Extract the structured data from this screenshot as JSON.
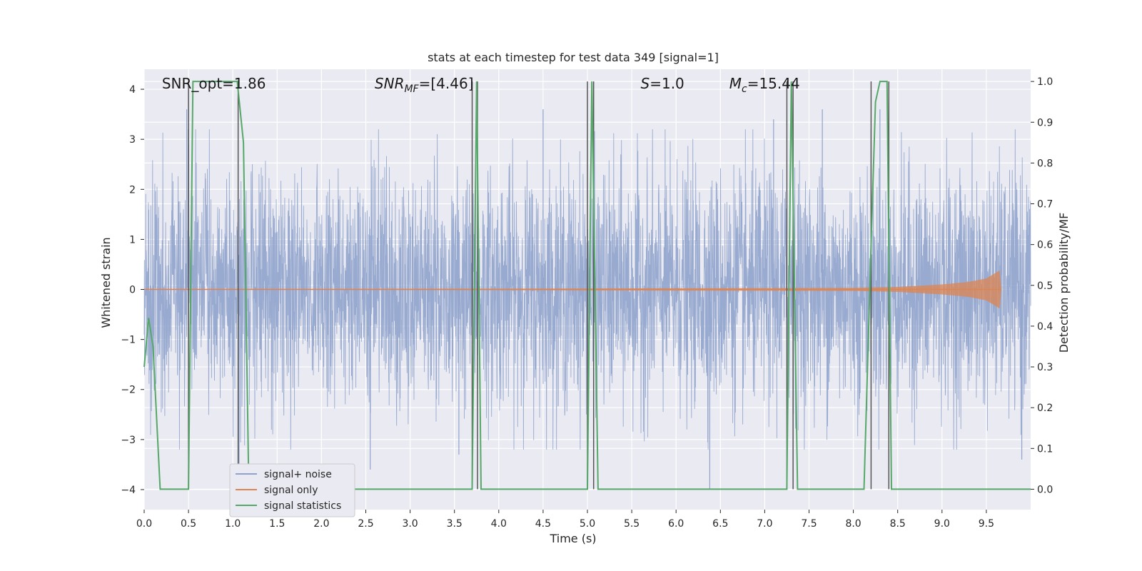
{
  "chart_data": {
    "type": "line",
    "title": "stats at each timestep for test data 349 [signal=1]",
    "xlabel": "Time (s)",
    "ylabel_left": "Whitened strain",
    "ylabel_right": "Detection probability/MF",
    "xlim": [
      0.0,
      10.0
    ],
    "ylim_left": [
      -4.4,
      4.4
    ],
    "ylim_right": [
      -0.05,
      1.03
    ],
    "grid": true,
    "legend_position": "lower-left",
    "x_ticks": [
      0.0,
      0.5,
      1.0,
      1.5,
      2.0,
      2.5,
      3.0,
      3.5,
      4.0,
      4.5,
      5.0,
      5.5,
      6.0,
      6.5,
      7.0,
      7.5,
      8.0,
      8.5,
      9.0,
      9.5
    ],
    "x_tick_labels": [
      "0.0",
      "0.5",
      "1.0",
      "1.5",
      "2.0",
      "2.5",
      "3.0",
      "3.5",
      "4.0",
      "4.5",
      "5.0",
      "5.5",
      "6.0",
      "6.5",
      "7.0",
      "7.5",
      "8.0",
      "8.5",
      "9.0",
      "9.5"
    ],
    "y_left_ticks": [
      4,
      3,
      2,
      1,
      0,
      -1,
      -2,
      -3,
      -4
    ],
    "y_left_tick_labels": [
      "4",
      "3",
      "2",
      "1",
      "0",
      "−1",
      "−2",
      "−3",
      "−4"
    ],
    "y_right_ticks": [
      1.0,
      0.9,
      0.8,
      0.7,
      0.6,
      0.5,
      0.4,
      0.3,
      0.2,
      0.1,
      0.0
    ],
    "y_right_tick_labels": [
      "1.0",
      "0.9",
      "0.8",
      "0.7",
      "0.6",
      "0.5",
      "0.4",
      "0.3",
      "0.2",
      "0.1",
      "0.0"
    ],
    "annotations": [
      {
        "text": "SNR_opt=1.86",
        "x": 0.2
      },
      {
        "text": "SNR_MF=[4.46]",
        "x": 2.6
      },
      {
        "text": "S=1.0",
        "x": 5.6
      },
      {
        "text": "M_c=15.44",
        "x": 6.6
      }
    ],
    "series": [
      {
        "name": "signal+ noise",
        "color": "#8fa3cc",
        "kind": "noisy-strain",
        "typical_envelope": [
          -2.0,
          2.0
        ],
        "extremes": [
          [
            0.48,
            3.6
          ],
          [
            1.07,
            -3.6
          ],
          [
            2.55,
            -3.6
          ],
          [
            3.55,
            -3.3
          ],
          [
            4.5,
            3.6
          ],
          [
            5.07,
            3.6
          ],
          [
            6.38,
            -4.0
          ],
          [
            7.1,
            3.4
          ],
          [
            7.65,
            3.6
          ],
          [
            8.3,
            3.6
          ],
          [
            9.9,
            -3.4
          ]
        ]
      },
      {
        "name": "signal only",
        "color": "#dd8452",
        "kind": "chirp",
        "points": [
          [
            0.0,
            0.0
          ],
          [
            8.0,
            0.03
          ],
          [
            8.5,
            0.05
          ],
          [
            9.0,
            0.1
          ],
          [
            9.3,
            0.15
          ],
          [
            9.5,
            0.22
          ],
          [
            9.65,
            0.38
          ],
          [
            9.67,
            0.0
          ]
        ]
      },
      {
        "name": "signal statistics",
        "color": "#55a868",
        "axis": "right",
        "points": [
          [
            0.0,
            0.3
          ],
          [
            0.05,
            0.42
          ],
          [
            0.1,
            0.35
          ],
          [
            0.18,
            0.0
          ],
          [
            0.5,
            0.0
          ],
          [
            0.55,
            1.0
          ],
          [
            1.05,
            1.0
          ],
          [
            1.12,
            0.85
          ],
          [
            1.18,
            0.0
          ],
          [
            3.7,
            0.0
          ],
          [
            3.75,
            1.0
          ],
          [
            3.8,
            0.0
          ],
          [
            5.0,
            0.0
          ],
          [
            5.05,
            1.0
          ],
          [
            5.12,
            0.0
          ],
          [
            7.25,
            0.0
          ],
          [
            7.3,
            1.0
          ],
          [
            7.37,
            0.0
          ],
          [
            8.12,
            0.0
          ],
          [
            8.2,
            0.6
          ],
          [
            8.25,
            0.95
          ],
          [
            8.3,
            1.0
          ],
          [
            8.38,
            1.0
          ],
          [
            8.43,
            0.0
          ],
          [
            10.0,
            0.0
          ]
        ]
      }
    ],
    "detection_markers": {
      "color": "#555555",
      "x": [
        0.5,
        1.06,
        3.7,
        3.76,
        5.0,
        5.07,
        7.25,
        7.32,
        8.2,
        8.4
      ]
    },
    "colors": {
      "plot_background": "#eaeaf2",
      "grid": "#ffffff",
      "axis_text": "#262626"
    }
  }
}
